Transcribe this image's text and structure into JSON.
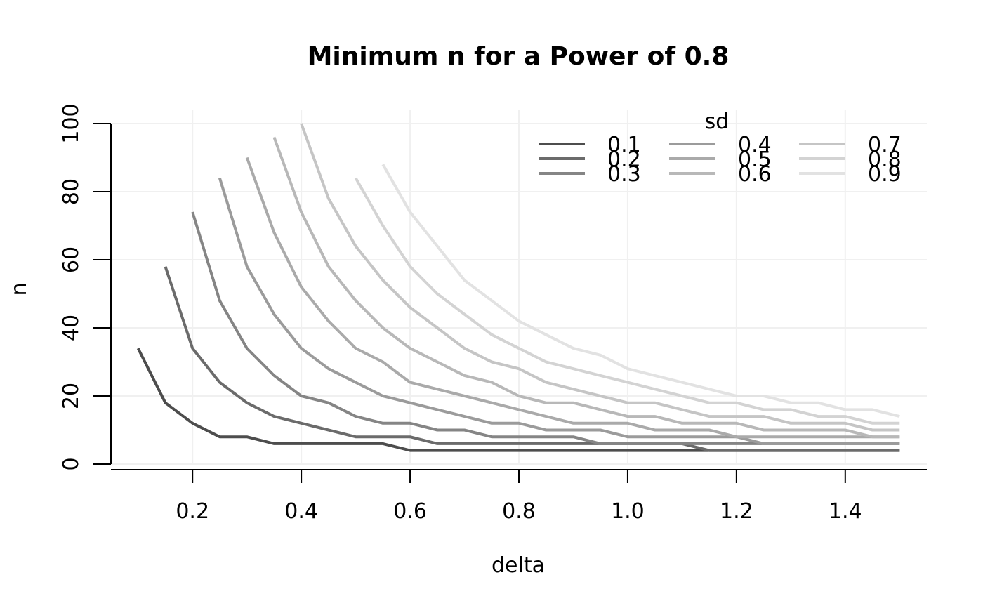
{
  "chart_data": {
    "type": "line",
    "title": "Minimum n for a Power of 0.8",
    "xlabel": "delta",
    "ylabel": "n",
    "xlim": [
      0.05,
      1.55
    ],
    "ylim": [
      0,
      100
    ],
    "x_ticks": [
      "0.2",
      "0.4",
      "0.6",
      "0.8",
      "1.0",
      "1.2",
      "1.4"
    ],
    "x_tick_values": [
      0.2,
      0.4,
      0.6,
      0.8,
      1.0,
      1.2,
      1.4
    ],
    "y_ticks": [
      "0",
      "20",
      "40",
      "60",
      "80",
      "100"
    ],
    "y_tick_values": [
      0,
      20,
      40,
      60,
      80,
      100
    ],
    "grid": true,
    "legend": {
      "title": "sd",
      "position": "top-right",
      "columns": 3
    },
    "series": [
      {
        "name": "0.1",
        "color": "#4d4d4d",
        "x": [
          0.1,
          0.15,
          0.2,
          0.25,
          0.3,
          0.35,
          0.4,
          0.45,
          0.5,
          0.55,
          0.6,
          0.65,
          0.7,
          0.75,
          0.8,
          0.85,
          0.9,
          0.95,
          1.0,
          1.05,
          1.1,
          1.15,
          1.2,
          1.25,
          1.3,
          1.35,
          1.4,
          1.45,
          1.5
        ],
        "y": [
          34,
          18,
          12,
          8,
          8,
          6,
          6,
          6,
          6,
          6,
          4,
          4,
          4,
          4,
          4,
          4,
          4,
          4,
          4,
          4,
          4,
          4,
          4,
          4,
          4,
          4,
          4,
          4,
          4
        ]
      },
      {
        "name": "0.2",
        "color": "#6b6b6b",
        "x": [
          0.15,
          0.2,
          0.25,
          0.3,
          0.35,
          0.4,
          0.45,
          0.5,
          0.55,
          0.6,
          0.65,
          0.7,
          0.75,
          0.8,
          0.85,
          0.9,
          0.95,
          1.0,
          1.05,
          1.1,
          1.15,
          1.2,
          1.25,
          1.3,
          1.35,
          1.4,
          1.45,
          1.5
        ],
        "y": [
          58,
          34,
          24,
          18,
          14,
          12,
          10,
          8,
          8,
          8,
          6,
          6,
          6,
          6,
          6,
          6,
          6,
          6,
          6,
          6,
          4,
          4,
          4,
          4,
          4,
          4,
          4,
          4
        ]
      },
      {
        "name": "0.3",
        "color": "#858585",
        "x": [
          0.2,
          0.25,
          0.3,
          0.35,
          0.4,
          0.45,
          0.5,
          0.55,
          0.6,
          0.65,
          0.7,
          0.75,
          0.8,
          0.85,
          0.9,
          0.95,
          1.0,
          1.05,
          1.1,
          1.15,
          1.2,
          1.25,
          1.3,
          1.35,
          1.4,
          1.45,
          1.5
        ],
        "y": [
          74,
          48,
          34,
          26,
          20,
          18,
          14,
          12,
          12,
          10,
          10,
          8,
          8,
          8,
          8,
          6,
          6,
          6,
          6,
          6,
          6,
          6,
          6,
          6,
          6,
          6,
          6
        ]
      },
      {
        "name": "0.4",
        "color": "#9b9b9b",
        "x": [
          0.25,
          0.3,
          0.35,
          0.4,
          0.45,
          0.5,
          0.55,
          0.6,
          0.65,
          0.7,
          0.75,
          0.8,
          0.85,
          0.9,
          0.95,
          1.0,
          1.05,
          1.1,
          1.15,
          1.2,
          1.25,
          1.3,
          1.35,
          1.4,
          1.45,
          1.5
        ],
        "y": [
          84,
          58,
          44,
          34,
          28,
          24,
          20,
          18,
          16,
          14,
          12,
          12,
          10,
          10,
          10,
          8,
          8,
          8,
          8,
          8,
          6,
          6,
          6,
          6,
          6,
          6
        ]
      },
      {
        "name": "0.5",
        "color": "#aaaaaa",
        "x": [
          0.3,
          0.35,
          0.4,
          0.45,
          0.5,
          0.55,
          0.6,
          0.65,
          0.7,
          0.75,
          0.8,
          0.85,
          0.9,
          0.95,
          1.0,
          1.05,
          1.1,
          1.15,
          1.2,
          1.25,
          1.3,
          1.35,
          1.4,
          1.45,
          1.5
        ],
        "y": [
          90,
          68,
          52,
          42,
          34,
          30,
          24,
          22,
          20,
          18,
          16,
          14,
          12,
          12,
          12,
          10,
          10,
          10,
          8,
          8,
          8,
          8,
          8,
          8,
          8
        ]
      },
      {
        "name": "0.6",
        "color": "#b8b8b8",
        "x": [
          0.35,
          0.4,
          0.45,
          0.5,
          0.55,
          0.6,
          0.65,
          0.7,
          0.75,
          0.8,
          0.85,
          0.9,
          0.95,
          1.0,
          1.05,
          1.1,
          1.15,
          1.2,
          1.25,
          1.3,
          1.35,
          1.4,
          1.45,
          1.5
        ],
        "y": [
          96,
          74,
          58,
          48,
          40,
          34,
          30,
          26,
          24,
          20,
          18,
          18,
          16,
          14,
          14,
          12,
          12,
          12,
          10,
          10,
          10,
          10,
          8,
          8
        ]
      },
      {
        "name": "0.7",
        "color": "#c5c5c5",
        "x": [
          0.4,
          0.45,
          0.5,
          0.55,
          0.6,
          0.65,
          0.7,
          0.75,
          0.8,
          0.85,
          0.9,
          0.95,
          1.0,
          1.05,
          1.1,
          1.15,
          1.2,
          1.25,
          1.3,
          1.35,
          1.4,
          1.45,
          1.5
        ],
        "y": [
          100,
          78,
          64,
          54,
          46,
          40,
          34,
          30,
          28,
          24,
          22,
          20,
          18,
          18,
          16,
          14,
          14,
          14,
          12,
          12,
          12,
          10,
          10
        ]
      },
      {
        "name": "0.8",
        "color": "#d3d3d3",
        "x": [
          0.5,
          0.55,
          0.6,
          0.65,
          0.7,
          0.75,
          0.8,
          0.85,
          0.9,
          0.95,
          1.0,
          1.05,
          1.1,
          1.15,
          1.2,
          1.25,
          1.3,
          1.35,
          1.4,
          1.45,
          1.5
        ],
        "y": [
          84,
          70,
          58,
          50,
          44,
          38,
          34,
          30,
          28,
          26,
          24,
          22,
          20,
          18,
          18,
          16,
          16,
          14,
          14,
          12,
          12
        ]
      },
      {
        "name": "0.9",
        "color": "#e2e2e2",
        "x": [
          0.55,
          0.6,
          0.65,
          0.7,
          0.75,
          0.8,
          0.85,
          0.9,
          0.95,
          1.0,
          1.05,
          1.1,
          1.15,
          1.2,
          1.25,
          1.3,
          1.35,
          1.4,
          1.45,
          1.5
        ],
        "y": [
          88,
          74,
          64,
          54,
          48,
          42,
          38,
          34,
          32,
          28,
          26,
          24,
          22,
          20,
          20,
          18,
          18,
          16,
          16,
          14
        ]
      }
    ]
  }
}
